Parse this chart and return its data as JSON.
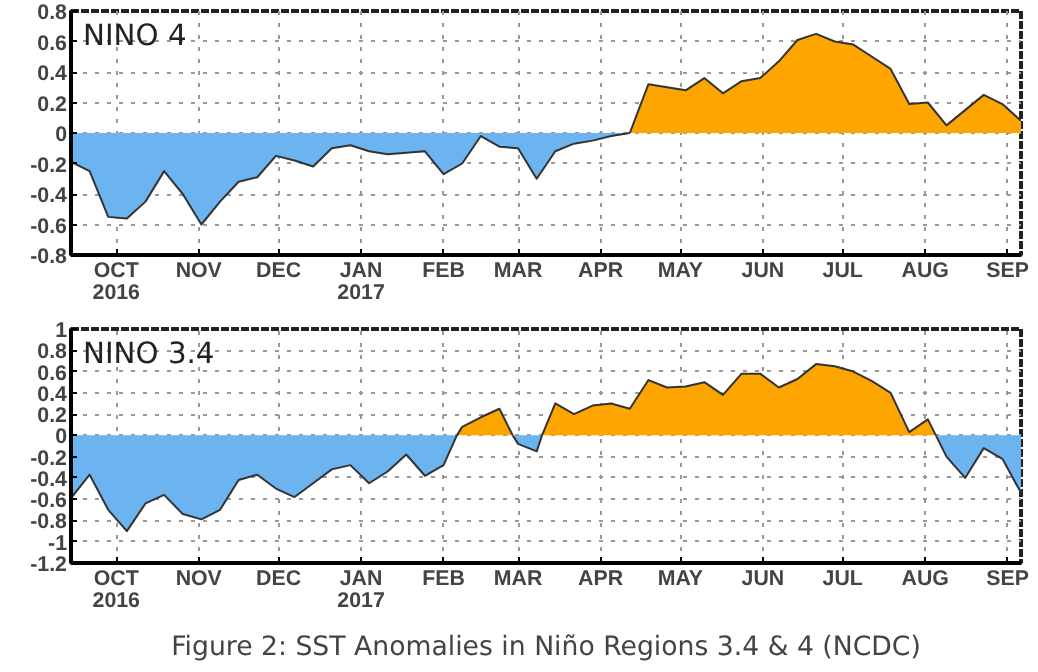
{
  "chart_data": [
    {
      "type": "area",
      "title": "NINO  4",
      "series": [
        {
          "color": "#6cb4f0",
          "x": [
            "2016-09-14",
            "2016-09-21",
            "2016-09-28",
            "2016-10-05",
            "2016-10-12",
            "2016-10-19",
            "2016-10-26",
            "2016-11-02",
            "2016-11-09",
            "2016-11-16",
            "2016-11-23",
            "2016-11-30",
            "2016-12-07",
            "2016-12-14",
            "2016-12-21",
            "2016-12-28",
            "2017-01-04",
            "2017-01-11",
            "2017-01-18",
            "2017-01-25",
            "2017-02-01",
            "2017-02-08",
            "2017-02-15",
            "2017-02-22",
            "2017-03-01",
            "2017-03-08",
            "2017-03-15",
            "2017-03-22",
            "2017-03-29",
            "2017-04-05",
            "2017-04-12"
          ],
          "values": [
            -0.19,
            -0.25,
            -0.55,
            -0.56,
            -0.45,
            -0.25,
            -0.4,
            -0.6,
            -0.45,
            -0.32,
            -0.29,
            -0.15,
            -0.18,
            -0.22,
            -0.1,
            -0.08,
            -0.12,
            -0.14,
            -0.13,
            -0.12,
            -0.27,
            -0.2,
            -0.02,
            -0.09,
            -0.1,
            -0.3,
            -0.12,
            -0.07,
            -0.05,
            -0.02,
            0
          ]
        },
        {
          "color": "#ffa500",
          "x": [
            "2017-04-12",
            "2017-04-19",
            "2017-04-26",
            "2017-05-03",
            "2017-05-10",
            "2017-05-17",
            "2017-05-24",
            "2017-05-31",
            "2017-06-07",
            "2017-06-14",
            "2017-06-21",
            "2017-06-28",
            "2017-07-05",
            "2017-07-12",
            "2017-07-19",
            "2017-07-26",
            "2017-08-02",
            "2017-08-09",
            "2017-08-16",
            "2017-08-23",
            "2017-08-30",
            "2017-09-06"
          ],
          "values": [
            0,
            0.32,
            0.3,
            0.28,
            0.36,
            0.26,
            0.34,
            0.36,
            0.47,
            0.61,
            0.65,
            0.6,
            0.58,
            0.5,
            0.42,
            0.19,
            0.2,
            0.05,
            0.15,
            0.25,
            0.19,
            0.08
          ]
        }
      ],
      "xlim": [
        "2016-09-14",
        "2017-09-06"
      ],
      "xticks": [
        {
          "value": "2016-10-01",
          "label": "OCT\n2016"
        },
        {
          "value": "2016-11-01",
          "label": "NOV"
        },
        {
          "value": "2016-12-01",
          "label": "DEC"
        },
        {
          "value": "2017-01-01",
          "label": "JAN\n2017"
        },
        {
          "value": "2017-02-01",
          "label": "FEB"
        },
        {
          "value": "2017-03-01",
          "label": "MAR"
        },
        {
          "value": "2017-04-01",
          "label": "APR"
        },
        {
          "value": "2017-05-01",
          "label": "MAY"
        },
        {
          "value": "2017-06-01",
          "label": "JUN"
        },
        {
          "value": "2017-07-01",
          "label": "JUL"
        },
        {
          "value": "2017-08-01",
          "label": "AUG"
        },
        {
          "value": "2017-09-01",
          "label": "SEP"
        }
      ],
      "ylim": [
        -0.8,
        0.8
      ],
      "yticks": [
        -0.8,
        -0.6,
        -0.4,
        -0.2,
        0,
        0.2,
        0.4,
        0.6,
        0.8
      ],
      "grid": true
    },
    {
      "type": "area",
      "title": "NINO  3.4",
      "series": [
        {
          "color": "#6cb4f0",
          "x": [
            "2016-09-14",
            "2016-09-21",
            "2016-09-28",
            "2016-10-05",
            "2016-10-12",
            "2016-10-19",
            "2016-10-26",
            "2016-11-02",
            "2016-11-09",
            "2016-11-16",
            "2016-11-23",
            "2016-11-30",
            "2016-12-07",
            "2016-12-14",
            "2016-12-21",
            "2016-12-28",
            "2017-01-04",
            "2017-01-11",
            "2017-01-18",
            "2017-01-25",
            "2017-02-01",
            "2017-02-06",
            "2017-02-16",
            "2017-02-27",
            "2017-03-01",
            "2017-03-08",
            "2017-03-10",
            "2017-05-20",
            "2017-08-05",
            "2017-08-09",
            "2017-08-16",
            "2017-08-23",
            "2017-08-30",
            "2017-09-06"
          ],
          "values": [
            -0.59,
            -0.37,
            -0.7,
            -0.9,
            -0.64,
            -0.56,
            -0.74,
            -0.79,
            -0.7,
            -0.42,
            -0.37,
            -0.5,
            -0.58,
            -0.45,
            -0.32,
            -0.28,
            -0.45,
            -0.34,
            -0.18,
            -0.38,
            -0.28,
            0,
            null,
            0,
            -0.08,
            -0.15,
            0,
            null,
            0,
            -0.2,
            -0.4,
            -0.12,
            -0.22,
            -0.54
          ]
        },
        {
          "color": "#ffa500",
          "x": [
            "2017-02-06",
            "2017-02-08",
            "2017-02-15",
            "2017-02-22",
            "2017-02-27",
            "2017-03-05",
            "2017-03-10",
            "2017-03-15",
            "2017-03-22",
            "2017-03-29",
            "2017-04-05",
            "2017-04-12",
            "2017-04-19",
            "2017-04-26",
            "2017-05-03",
            "2017-05-10",
            "2017-05-17",
            "2017-05-24",
            "2017-05-31",
            "2017-06-07",
            "2017-06-14",
            "2017-06-21",
            "2017-06-28",
            "2017-07-05",
            "2017-07-12",
            "2017-07-19",
            "2017-07-26",
            "2017-08-02",
            "2017-08-05"
          ],
          "values": [
            0,
            0.08,
            0.17,
            0.25,
            0,
            null,
            0,
            0.3,
            0.2,
            0.28,
            0.3,
            0.25,
            0.52,
            0.45,
            0.46,
            0.5,
            0.38,
            0.58,
            0.58,
            0.45,
            0.53,
            0.67,
            0.65,
            0.6,
            0.51,
            0.4,
            0.03,
            0.15,
            0
          ]
        }
      ],
      "xlim": [
        "2016-09-14",
        "2017-09-06"
      ],
      "xticks": [
        {
          "value": "2016-10-01",
          "label": "OCT\n2016"
        },
        {
          "value": "2016-11-01",
          "label": "NOV"
        },
        {
          "value": "2016-12-01",
          "label": "DEC"
        },
        {
          "value": "2017-01-01",
          "label": "JAN\n2017"
        },
        {
          "value": "2017-02-01",
          "label": "FEB"
        },
        {
          "value": "2017-03-01",
          "label": "MAR"
        },
        {
          "value": "2017-04-01",
          "label": "APR"
        },
        {
          "value": "2017-05-01",
          "label": "MAY"
        },
        {
          "value": "2017-06-01",
          "label": "JUN"
        },
        {
          "value": "2017-07-01",
          "label": "JUL"
        },
        {
          "value": "2017-08-01",
          "label": "AUG"
        },
        {
          "value": "2017-09-01",
          "label": "SEP"
        }
      ],
      "ylim": [
        -1.2,
        1
      ],
      "yticks": [
        -1.2,
        -1,
        -0.8,
        -0.6,
        -0.4,
        -0.2,
        0,
        0.2,
        0.4,
        0.6,
        0.8,
        1
      ],
      "grid": true,
      "annotations": [
        "Figure 2: SST Anomalies in Niño Regions 3.4 & 4 (NCDC)"
      ]
    }
  ]
}
